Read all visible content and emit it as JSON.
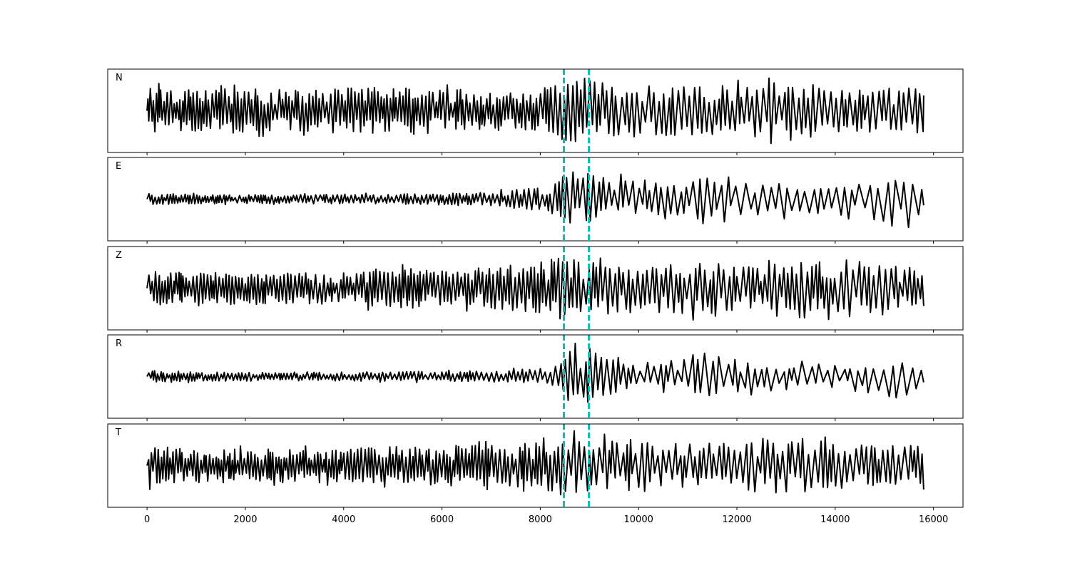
{
  "chart_data": {
    "type": "line",
    "title": "",
    "xlabel": "",
    "ylabel": "",
    "xlim": [
      -800,
      16600
    ],
    "xticks": [
      0,
      2000,
      4000,
      6000,
      8000,
      10000,
      12000,
      14000,
      16000
    ],
    "xtick_labels": [
      "0",
      "2000",
      "4000",
      "6000",
      "8000",
      "10000",
      "12000",
      "14000",
      "16000"
    ],
    "x_range": [
      0,
      15800
    ],
    "y_ticks_shown": false,
    "grid": false,
    "markers": {
      "x": [
        8480,
        8990
      ],
      "color": "#00bfbf",
      "style": "dashed"
    },
    "trace_color": "#000000",
    "panels": [
      {
        "label": "N",
        "ylim": [
          -1.1,
          1.1
        ],
        "envelope": [
          [
            0,
            0.65
          ],
          [
            1000,
            0.55
          ],
          [
            2000,
            0.6
          ],
          [
            3000,
            0.55
          ],
          [
            4000,
            0.6
          ],
          [
            5000,
            0.65
          ],
          [
            6000,
            0.6
          ],
          [
            7000,
            0.55
          ],
          [
            8000,
            0.6
          ],
          [
            8500,
            0.85
          ],
          [
            8700,
            1.0
          ],
          [
            9000,
            0.8
          ],
          [
            9500,
            0.7
          ],
          [
            10000,
            0.75
          ],
          [
            11000,
            0.65
          ],
          [
            12000,
            0.7
          ],
          [
            12700,
            0.75
          ],
          [
            13500,
            0.6
          ],
          [
            14500,
            0.55
          ],
          [
            15800,
            0.65
          ]
        ],
        "period": [
          [
            0,
            60
          ],
          [
            8000,
            70
          ],
          [
            9000,
            100
          ],
          [
            15800,
            110
          ]
        ]
      },
      {
        "label": "E",
        "ylim": [
          -1.1,
          1.1
        ],
        "envelope": [
          [
            0,
            0.15
          ],
          [
            1000,
            0.13
          ],
          [
            2000,
            0.12
          ],
          [
            3000,
            0.12
          ],
          [
            4000,
            0.13
          ],
          [
            5000,
            0.14
          ],
          [
            6000,
            0.16
          ],
          [
            7000,
            0.2
          ],
          [
            8000,
            0.3
          ],
          [
            8500,
            0.65
          ],
          [
            8700,
            0.9
          ],
          [
            9000,
            0.7
          ],
          [
            9500,
            0.6
          ],
          [
            10000,
            0.5
          ],
          [
            11000,
            0.55
          ],
          [
            11400,
            0.85
          ],
          [
            12000,
            0.5
          ],
          [
            13000,
            0.45
          ],
          [
            14000,
            0.4
          ],
          [
            15000,
            0.6
          ],
          [
            15500,
            0.65
          ],
          [
            15800,
            0.45
          ]
        ],
        "period": [
          [
            0,
            60
          ],
          [
            7000,
            80
          ],
          [
            8500,
            110
          ],
          [
            15800,
            190
          ]
        ]
      },
      {
        "label": "Z",
        "ylim": [
          -1.1,
          1.1
        ],
        "envelope": [
          [
            0,
            0.45
          ],
          [
            1000,
            0.4
          ],
          [
            2000,
            0.45
          ],
          [
            3000,
            0.4
          ],
          [
            4000,
            0.45
          ],
          [
            5000,
            0.55
          ],
          [
            6000,
            0.5
          ],
          [
            7000,
            0.55
          ],
          [
            8000,
            0.7
          ],
          [
            8500,
            0.85
          ],
          [
            8700,
            0.9
          ],
          [
            9000,
            0.7
          ],
          [
            10000,
            0.65
          ],
          [
            11000,
            0.7
          ],
          [
            11400,
            0.8
          ],
          [
            12000,
            0.6
          ],
          [
            13000,
            0.65
          ],
          [
            14300,
            0.75
          ],
          [
            15000,
            0.6
          ],
          [
            15800,
            0.55
          ]
        ],
        "period": [
          [
            0,
            60
          ],
          [
            8000,
            75
          ],
          [
            9000,
            90
          ],
          [
            15800,
            100
          ]
        ]
      },
      {
        "label": "R",
        "ylim": [
          -1.1,
          1.1
        ],
        "envelope": [
          [
            0,
            0.17
          ],
          [
            1000,
            0.13
          ],
          [
            2000,
            0.12
          ],
          [
            3000,
            0.12
          ],
          [
            4000,
            0.12
          ],
          [
            5000,
            0.13
          ],
          [
            6000,
            0.14
          ],
          [
            7000,
            0.16
          ],
          [
            8000,
            0.22
          ],
          [
            8500,
            0.55
          ],
          [
            8700,
            0.9
          ],
          [
            9000,
            0.65
          ],
          [
            9500,
            0.55
          ],
          [
            10000,
            0.4
          ],
          [
            11000,
            0.5
          ],
          [
            11400,
            0.85
          ],
          [
            12000,
            0.45
          ],
          [
            13000,
            0.35
          ],
          [
            14000,
            0.35
          ],
          [
            15000,
            0.55
          ],
          [
            15500,
            0.6
          ],
          [
            15800,
            0.2
          ]
        ],
        "period": [
          [
            0,
            60
          ],
          [
            7000,
            80
          ],
          [
            8500,
            110
          ],
          [
            15800,
            180
          ]
        ]
      },
      {
        "label": "T",
        "ylim": [
          -1.1,
          1.1
        ],
        "envelope": [
          [
            0,
            0.55
          ],
          [
            1000,
            0.45
          ],
          [
            2000,
            0.45
          ],
          [
            3000,
            0.45
          ],
          [
            4000,
            0.45
          ],
          [
            5000,
            0.5
          ],
          [
            6000,
            0.55
          ],
          [
            7000,
            0.55
          ],
          [
            8000,
            0.6
          ],
          [
            8500,
            0.85
          ],
          [
            8700,
            0.95
          ],
          [
            9000,
            0.75
          ],
          [
            9500,
            0.7
          ],
          [
            10000,
            0.7
          ],
          [
            11000,
            0.6
          ],
          [
            12000,
            0.65
          ],
          [
            12700,
            0.75
          ],
          [
            13500,
            0.7
          ],
          [
            14500,
            0.55
          ],
          [
            15800,
            0.55
          ]
        ],
        "period": [
          [
            0,
            60
          ],
          [
            8000,
            70
          ],
          [
            9000,
            100
          ],
          [
            15800,
            110
          ]
        ]
      }
    ]
  }
}
